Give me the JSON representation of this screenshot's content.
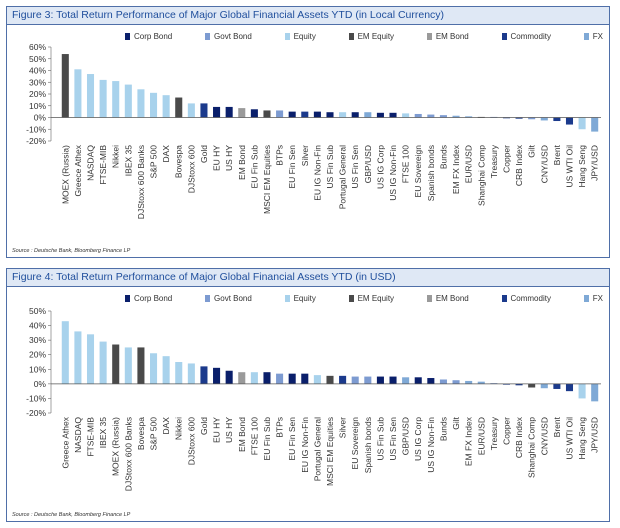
{
  "colors": {
    "Corp Bond": "#0a1f6b",
    "Govt Bond": "#7d9bd1",
    "Equity": "#a8d2ec",
    "EM Equity": "#4a4a4a",
    "EM Bond": "#9a9a9a",
    "Commodity": "#1b3a8c",
    "FX": "#7fa9d6"
  },
  "chart_data": [
    {
      "type": "bar",
      "title": "Figure 3: Total Return Performance of Major Global Financial Assets YTD (in Local Currency)",
      "source": "Source : Deutsche Bank, Bloomberg Finance LP",
      "legend": [
        "Corp Bond",
        "Govt Bond",
        "Equity",
        "EM Equity",
        "EM Bond",
        "Commodity",
        "FX"
      ],
      "ylim": [
        -20,
        60
      ],
      "yticks": [
        -20,
        -10,
        0,
        10,
        20,
        30,
        40,
        50,
        60
      ],
      "ytick_labels": [
        "-20%",
        "-10%",
        "0%",
        "10%",
        "20%",
        "30%",
        "40%",
        "50%",
        "60%"
      ],
      "categories": [
        "MOEX (Russia)",
        "Greece Athex",
        "NASDAQ",
        "FTSE-MIB",
        "Nikkei",
        "IBEX 35",
        "DJStoxx 600 Banks",
        "S&P 500",
        "DAX",
        "Bovespa",
        "DJStoxx 600",
        "Gold",
        "EU HY",
        "US HY",
        "EM Bond",
        "EU Fin Sub",
        "MSCI EM Equities",
        "BTPs",
        "EU Fin Sen",
        "Silver",
        "EU IG Non-Fin",
        "US Fin Sub",
        "Portugal General",
        "US Fin Sen",
        "GBP/USD",
        "US IG Corp",
        "US IG Non-Fin",
        "FTSE 100",
        "EU Sovereign",
        "Spanish bonds",
        "Bunds",
        "EM FX Index",
        "EUR/USD",
        "Shanghai Comp",
        "Treasury",
        "Copper",
        "CRB Index",
        "Gilt",
        "CNY/USD",
        "Brent",
        "US WTI Oil",
        "Hang Seng",
        "JPY/USD"
      ],
      "values": [
        54,
        41,
        37,
        32,
        31,
        28,
        24,
        21,
        19,
        17,
        12,
        12,
        9,
        9,
        8,
        7,
        6,
        6,
        5,
        5,
        5,
        4.5,
        4.5,
        4.5,
        4.5,
        4,
        4,
        3.5,
        3,
        2.5,
        2,
        1.5,
        1,
        0.5,
        0.5,
        -0.5,
        -1,
        -1.5,
        -2.5,
        -3,
        -6,
        -10,
        -12
      ],
      "groups": [
        "EM Equity",
        "Equity",
        "Equity",
        "Equity",
        "Equity",
        "Equity",
        "Equity",
        "Equity",
        "Equity",
        "EM Equity",
        "Equity",
        "Commodity",
        "Corp Bond",
        "Corp Bond",
        "EM Bond",
        "Corp Bond",
        "EM Equity",
        "Govt Bond",
        "Corp Bond",
        "Commodity",
        "Corp Bond",
        "Corp Bond",
        "Equity",
        "Corp Bond",
        "FX",
        "Corp Bond",
        "Corp Bond",
        "Equity",
        "Govt Bond",
        "Govt Bond",
        "Govt Bond",
        "FX",
        "FX",
        "EM Equity",
        "Govt Bond",
        "Commodity",
        "Commodity",
        "Govt Bond",
        "FX",
        "Commodity",
        "Commodity",
        "Equity",
        "FX"
      ]
    },
    {
      "type": "bar",
      "title": "Figure 4: Total Return Performance of Major Global Financial Assets YTD (in USD)",
      "source": "Source : Deutsche Bank, Bloomberg Finance LP",
      "legend": [
        "Corp Bond",
        "Govt Bond",
        "Equity",
        "EM Equity",
        "EM Bond",
        "Commodity",
        "FX"
      ],
      "ylim": [
        -20,
        50
      ],
      "yticks": [
        -20,
        -10,
        0,
        10,
        20,
        30,
        40,
        50
      ],
      "ytick_labels": [
        "-20%",
        "-10%",
        "0%",
        "10%",
        "20%",
        "30%",
        "40%",
        "50%"
      ],
      "categories": [
        "Greece Athex",
        "NASDAQ",
        "FTSE-MIB",
        "IBEX 35",
        "MOEX (Russia)",
        "DJStoxx 600 Banks",
        "Bovespa",
        "S&P 500",
        "DAX",
        "Nikkei",
        "DJStoxx 600",
        "Gold",
        "EU HY",
        "US HY",
        "EM Bond",
        "FTSE 100",
        "EU Fin Sub",
        "BTPs",
        "EU Fin Sen",
        "EU IG Non-Fin",
        "Portugal General",
        "MSCI EM Equities",
        "Silver",
        "EU Sovereign",
        "Spanish bonds",
        "US Fin Sub",
        "US Fin Sen",
        "GBP/USD",
        "US IG Corp",
        "US IG Non-Fin",
        "Bunds",
        "Gilt",
        "EM FX Index",
        "EUR/USD",
        "Treasury",
        "Copper",
        "CRB Index",
        "Shanghai Comp",
        "CNY/USD",
        "Brent",
        "US WTI Oil",
        "Hang Seng",
        "JPY/USD"
      ],
      "values": [
        43,
        36,
        34,
        29,
        27,
        25,
        25,
        21,
        19,
        15,
        14,
        12,
        11,
        9,
        8,
        8,
        8,
        7,
        7,
        7,
        6,
        5.5,
        5.5,
        5,
        5,
        5,
        5,
        4.5,
        4.5,
        4,
        3,
        2.5,
        2,
        1.5,
        0.5,
        -0.5,
        -1,
        -2.5,
        -3,
        -3.5,
        -5,
        -10,
        -12
      ],
      "groups": [
        "Equity",
        "Equity",
        "Equity",
        "Equity",
        "EM Equity",
        "Equity",
        "EM Equity",
        "Equity",
        "Equity",
        "Equity",
        "Equity",
        "Commodity",
        "Corp Bond",
        "Corp Bond",
        "EM Bond",
        "Equity",
        "Corp Bond",
        "Govt Bond",
        "Corp Bond",
        "Corp Bond",
        "Equity",
        "EM Equity",
        "Commodity",
        "Govt Bond",
        "Govt Bond",
        "Corp Bond",
        "Corp Bond",
        "FX",
        "Corp Bond",
        "Corp Bond",
        "Govt Bond",
        "Govt Bond",
        "FX",
        "FX",
        "Govt Bond",
        "Commodity",
        "Commodity",
        "EM Equity",
        "FX",
        "Commodity",
        "Commodity",
        "Equity",
        "FX"
      ]
    }
  ]
}
